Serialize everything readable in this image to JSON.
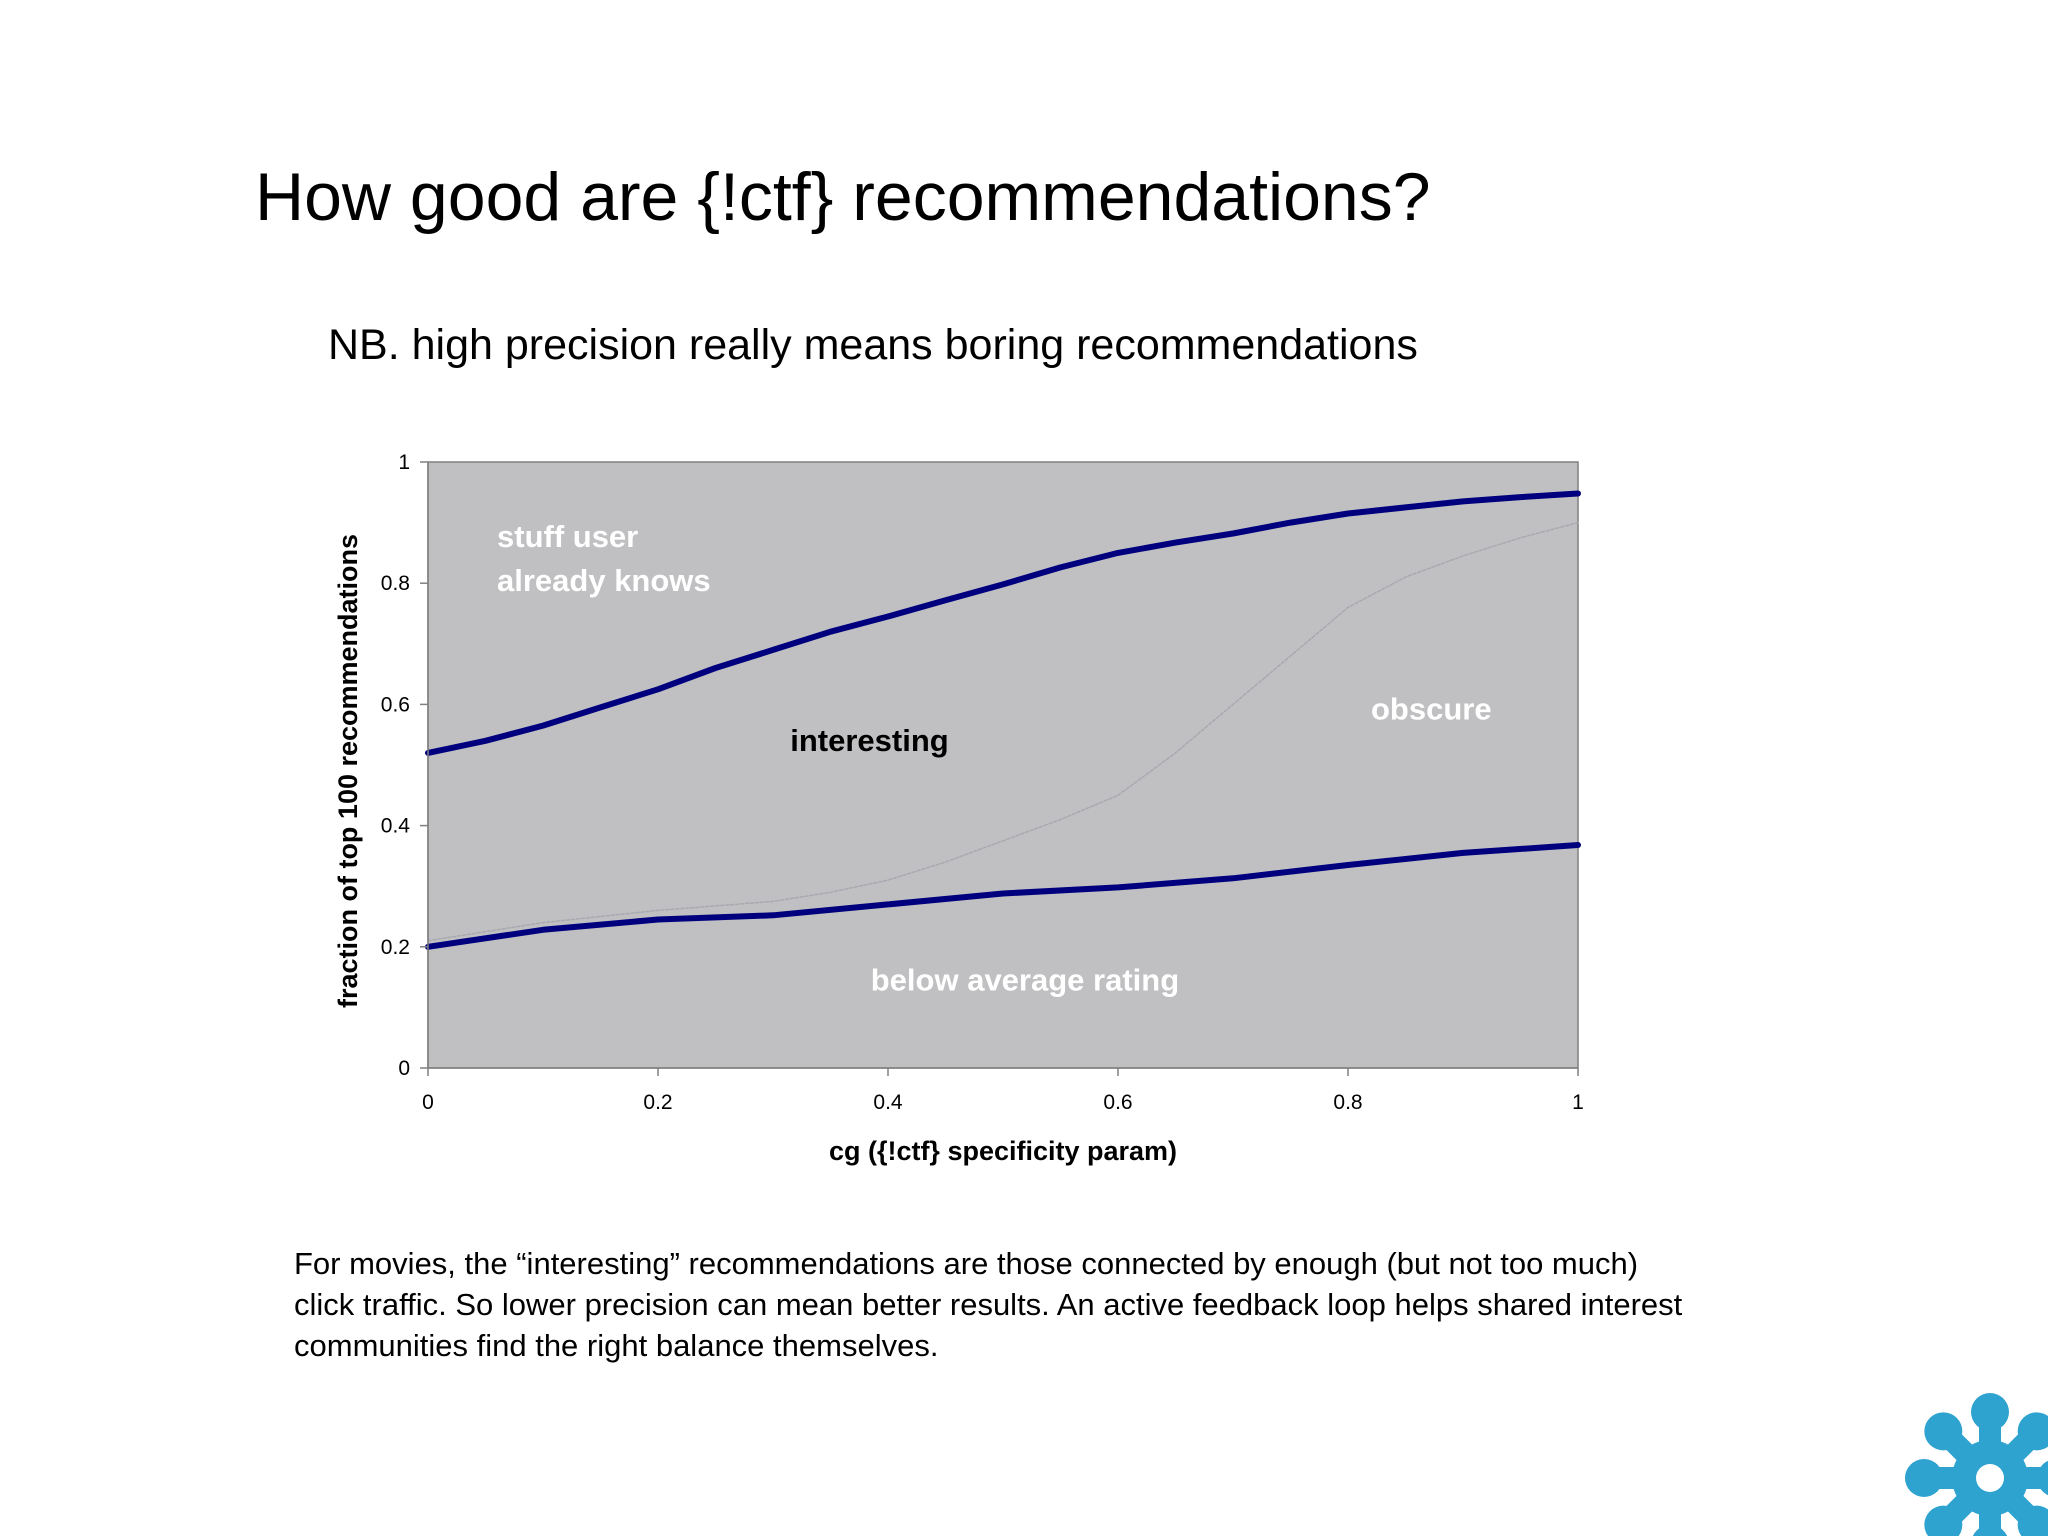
{
  "slide": {
    "title": "How good are {!ctf} recommendations?",
    "subtitle": "NB. high precision really means boring recommendations",
    "caption_lines": [
      "For movies, the “interesting” recommendations are those connected by enough (but not too much)",
      "click traffic. So lower precision can mean better results. An active feedback loop helps shared interest",
      "communities find the right balance themselves."
    ]
  },
  "chart_data": {
    "type": "line",
    "xlabel": "cg ({!ctf} specificity param)",
    "ylabel": "fraction of top 100 recommendations",
    "xlim": [
      0,
      1
    ],
    "ylim": [
      0,
      1
    ],
    "x_ticks": [
      "0",
      "0.2",
      "0.4",
      "0.6",
      "0.8",
      "1"
    ],
    "y_ticks": [
      "0",
      "0.2",
      "0.4",
      "0.6",
      "0.8",
      "1"
    ],
    "grid": false,
    "legend": "none",
    "plot_background": "#c0c0c2",
    "series": [
      {
        "style": "thick",
        "color": "#00007f",
        "x": [
          0,
          0.05,
          0.1,
          0.15,
          0.2,
          0.25,
          0.3,
          0.35,
          0.4,
          0.45,
          0.5,
          0.55,
          0.6,
          0.65,
          0.7,
          0.75,
          0.8,
          0.85,
          0.9,
          0.95,
          1
        ],
        "y": [
          0.52,
          0.54,
          0.565,
          0.595,
          0.625,
          0.66,
          0.69,
          0.72,
          0.745,
          0.772,
          0.798,
          0.826,
          0.85,
          0.867,
          0.882,
          0.9,
          0.915,
          0.925,
          0.935,
          0.942,
          0.948
        ]
      },
      {
        "style": "thin",
        "color": "#a8a8b0",
        "x": [
          0,
          0.1,
          0.2,
          0.3,
          0.35,
          0.4,
          0.45,
          0.5,
          0.55,
          0.6,
          0.65,
          0.7,
          0.75,
          0.8,
          0.85,
          0.9,
          0.95,
          1
        ],
        "y": [
          0.21,
          0.24,
          0.26,
          0.275,
          0.29,
          0.31,
          0.34,
          0.375,
          0.41,
          0.45,
          0.52,
          0.6,
          0.68,
          0.76,
          0.81,
          0.845,
          0.875,
          0.9
        ]
      },
      {
        "style": "thick",
        "color": "#00007f",
        "x": [
          0,
          0.1,
          0.2,
          0.3,
          0.4,
          0.5,
          0.6,
          0.7,
          0.8,
          0.9,
          1
        ],
        "y": [
          0.2,
          0.228,
          0.245,
          0.252,
          0.27,
          0.288,
          0.298,
          0.313,
          0.335,
          0.355,
          0.368
        ]
      }
    ],
    "annotations": [
      {
        "text": "stuff user",
        "x": 0.06,
        "y": 0.86,
        "color": "#ffffff"
      },
      {
        "text": "already knows",
        "x": 0.06,
        "y": 0.787,
        "color": "#ffffff"
      },
      {
        "text": "interesting",
        "x": 0.315,
        "y": 0.523,
        "color": "#000000"
      },
      {
        "text": "obscure",
        "x": 0.82,
        "y": 0.575,
        "color": "#ffffff"
      },
      {
        "text": "below average rating",
        "x": 0.385,
        "y": 0.128,
        "color": "#ffffff"
      }
    ]
  },
  "logo": {
    "icon": "flower-logo-icon",
    "color": "#2ea3cf"
  }
}
